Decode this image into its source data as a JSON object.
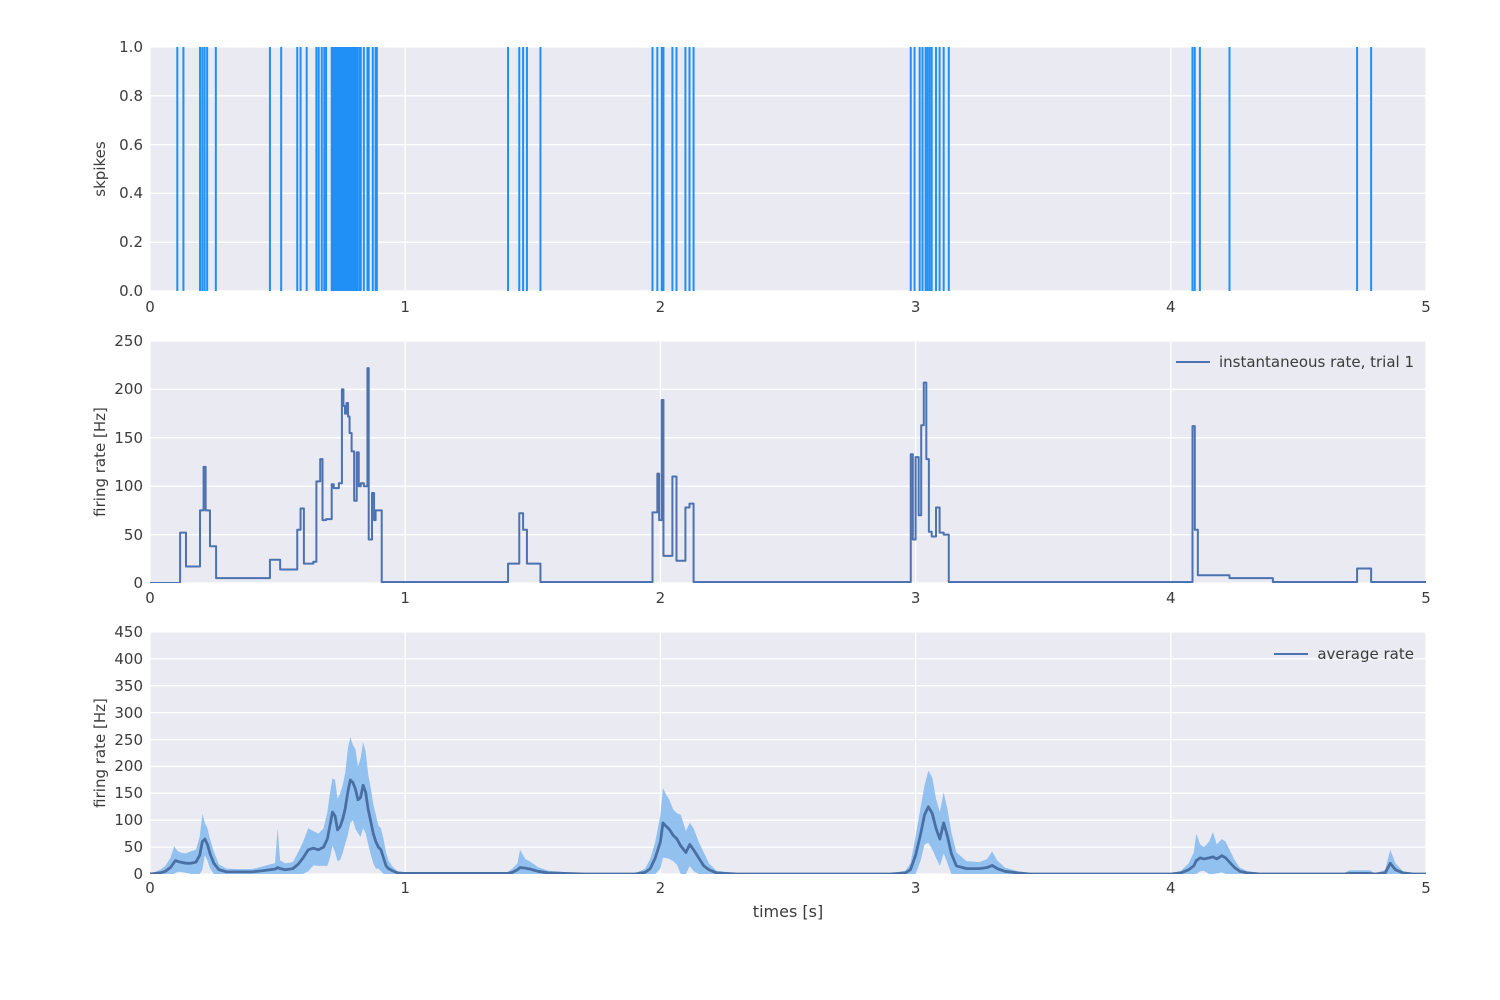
{
  "figure": {
    "background": "#ffffff",
    "axes_background": "#eaeaf2",
    "grid_color": "#ffffff",
    "text_color": "#3b3b3b"
  },
  "chart_data": [
    {
      "type": "event_raster",
      "ylabel": "skpikes",
      "xlim": [
        0,
        5
      ],
      "ylim": [
        0.0,
        1.0
      ],
      "xtick_values": [
        0,
        1,
        2,
        3,
        4,
        5
      ],
      "xtick_labels": [
        "0",
        "1",
        "2",
        "3",
        "4",
        "5"
      ],
      "ytick_values": [
        1.0,
        0.8,
        0.6,
        0.4,
        0.2,
        0.0
      ],
      "ytick_labels": [
        "1.0",
        "0.8",
        "0.6",
        "0.4",
        "0.2",
        "0.0"
      ],
      "grid": true,
      "line_color": "#2090f6",
      "spike_times": [
        0.107,
        0.131,
        0.196,
        0.205,
        0.214,
        0.224,
        0.258,
        0.47,
        0.514,
        0.577,
        0.59,
        0.614,
        0.652,
        0.661,
        0.673,
        0.683,
        0.69,
        0.712,
        0.7175,
        0.723,
        0.7285,
        0.734,
        0.7395,
        0.745,
        0.7505,
        0.756,
        0.7615,
        0.767,
        0.7725,
        0.778,
        0.7835,
        0.789,
        0.7945,
        0.8,
        0.8055,
        0.812,
        0.82,
        0.826,
        0.838,
        0.852,
        0.857,
        0.873,
        0.884,
        0.889,
        1.403,
        1.447,
        1.462,
        1.477,
        1.53,
        1.969,
        1.988,
        2.005,
        2.012,
        2.047,
        2.063,
        2.098,
        2.114,
        2.13,
        2.981,
        2.996,
        3.016,
        3.027,
        3.039,
        3.047,
        3.055,
        3.063,
        3.08,
        3.094,
        3.11,
        3.13,
        4.085,
        4.094,
        4.114,
        4.23,
        4.73,
        4.785
      ]
    },
    {
      "type": "step_line",
      "legend": "instantaneous rate, trial 1",
      "ylabel": "firing rate [Hz]",
      "xlim": [
        0,
        5
      ],
      "ylim": [
        0,
        250
      ],
      "xtick_values": [
        0,
        1,
        2,
        3,
        4,
        5
      ],
      "xtick_labels": [
        "0",
        "1",
        "2",
        "3",
        "4",
        "5"
      ],
      "ytick_values": [
        250,
        200,
        150,
        100,
        50,
        0
      ],
      "ytick_labels": [
        "250",
        "200",
        "150",
        "100",
        "50",
        "0"
      ],
      "grid": true,
      "line_color": "#4c72b0",
      "steps": [
        [
          0,
          0
        ],
        [
          0.118,
          52
        ],
        [
          0.141,
          17
        ],
        [
          0.196,
          75
        ],
        [
          0.21,
          120
        ],
        [
          0.218,
          75
        ],
        [
          0.235,
          38
        ],
        [
          0.259,
          5
        ],
        [
          0.47,
          24
        ],
        [
          0.51,
          14
        ],
        [
          0.577,
          55
        ],
        [
          0.59,
          77
        ],
        [
          0.603,
          20
        ],
        [
          0.64,
          22
        ],
        [
          0.652,
          105
        ],
        [
          0.667,
          128
        ],
        [
          0.676,
          65
        ],
        [
          0.69,
          66
        ],
        [
          0.712,
          102
        ],
        [
          0.72,
          98
        ],
        [
          0.74,
          103
        ],
        [
          0.752,
          200
        ],
        [
          0.758,
          183
        ],
        [
          0.764,
          175
        ],
        [
          0.77,
          186
        ],
        [
          0.776,
          172
        ],
        [
          0.782,
          155
        ],
        [
          0.79,
          136
        ],
        [
          0.8,
          85
        ],
        [
          0.81,
          135
        ],
        [
          0.818,
          100
        ],
        [
          0.826,
          103
        ],
        [
          0.838,
          100
        ],
        [
          0.852,
          222
        ],
        [
          0.857,
          45
        ],
        [
          0.87,
          93
        ],
        [
          0.878,
          65
        ],
        [
          0.884,
          75
        ],
        [
          0.908,
          1
        ],
        [
          1.403,
          20
        ],
        [
          1.447,
          72
        ],
        [
          1.462,
          55
        ],
        [
          1.477,
          20
        ],
        [
          1.53,
          1
        ],
        [
          1.969,
          73
        ],
        [
          1.988,
          113
        ],
        [
          1.995,
          65
        ],
        [
          2.005,
          189
        ],
        [
          2.012,
          28
        ],
        [
          2.047,
          110
        ],
        [
          2.063,
          23
        ],
        [
          2.098,
          78
        ],
        [
          2.114,
          82
        ],
        [
          2.13,
          1
        ],
        [
          2.981,
          133
        ],
        [
          2.989,
          45
        ],
        [
          3.0,
          130
        ],
        [
          3.012,
          70
        ],
        [
          3.022,
          163
        ],
        [
          3.032,
          207
        ],
        [
          3.042,
          128
        ],
        [
          3.052,
          53
        ],
        [
          3.063,
          48
        ],
        [
          3.08,
          78
        ],
        [
          3.094,
          52
        ],
        [
          3.11,
          50
        ],
        [
          3.13,
          1
        ],
        [
          4.085,
          162
        ],
        [
          4.094,
          55
        ],
        [
          4.106,
          8
        ],
        [
          4.23,
          5
        ],
        [
          4.4,
          1
        ],
        [
          4.73,
          15
        ],
        [
          4.785,
          1
        ],
        [
          5.0,
          1
        ]
      ]
    },
    {
      "type": "line_band",
      "legend": "average rate",
      "ylabel": "firing rate [Hz]",
      "xlabel": "times [s]",
      "xlim": [
        0,
        5
      ],
      "ylim": [
        0,
        450
      ],
      "xtick_values": [
        0,
        1,
        2,
        3,
        4,
        5
      ],
      "xtick_labels": [
        "0",
        "1",
        "2",
        "3",
        "4",
        "5"
      ],
      "ytick_values": [
        450,
        400,
        350,
        300,
        250,
        200,
        150,
        100,
        50,
        0
      ],
      "ytick_labels": [
        "450",
        "400",
        "350",
        "300",
        "250",
        "200",
        "150",
        "100",
        "50",
        "0"
      ],
      "grid": true,
      "line_color": "#4a6fa3",
      "band_color": "#8abcee",
      "points": [
        [
          0.0,
          0,
          0
        ],
        [
          0.04,
          2,
          8
        ],
        [
          0.06,
          5,
          15
        ],
        [
          0.08,
          12,
          30
        ],
        [
          0.095,
          22,
          52
        ],
        [
          0.1,
          25,
          48
        ],
        [
          0.11,
          23,
          42
        ],
        [
          0.12,
          22,
          40
        ],
        [
          0.14,
          20,
          38
        ],
        [
          0.16,
          20,
          42
        ],
        [
          0.18,
          22,
          45
        ],
        [
          0.195,
          35,
          70
        ],
        [
          0.205,
          60,
          112
        ],
        [
          0.215,
          65,
          95
        ],
        [
          0.225,
          55,
          85
        ],
        [
          0.235,
          38,
          65
        ],
        [
          0.25,
          20,
          42
        ],
        [
          0.27,
          8,
          18
        ],
        [
          0.3,
          4,
          10
        ],
        [
          0.35,
          4,
          9
        ],
        [
          0.4,
          4,
          9
        ],
        [
          0.44,
          6,
          14
        ],
        [
          0.47,
          8,
          18
        ],
        [
          0.49,
          9,
          20
        ],
        [
          0.5,
          12,
          85
        ],
        [
          0.51,
          10,
          25
        ],
        [
          0.53,
          8,
          20
        ],
        [
          0.56,
          10,
          22
        ],
        [
          0.58,
          18,
          40
        ],
        [
          0.6,
          30,
          60
        ],
        [
          0.62,
          45,
          85
        ],
        [
          0.64,
          48,
          80
        ],
        [
          0.66,
          45,
          75
        ],
        [
          0.68,
          50,
          85
        ],
        [
          0.695,
          65,
          115
        ],
        [
          0.705,
          90,
          150
        ],
        [
          0.715,
          115,
          178
        ],
        [
          0.725,
          108,
          175
        ],
        [
          0.735,
          82,
          140
        ],
        [
          0.745,
          88,
          150
        ],
        [
          0.755,
          102,
          165
        ],
        [
          0.765,
          122,
          188
        ],
        [
          0.775,
          152,
          232
        ],
        [
          0.785,
          175,
          255
        ],
        [
          0.795,
          170,
          240
        ],
        [
          0.805,
          158,
          232
        ],
        [
          0.815,
          138,
          200
        ],
        [
          0.825,
          142,
          215
        ],
        [
          0.835,
          165,
          245
        ],
        [
          0.845,
          152,
          228
        ],
        [
          0.855,
          120,
          185
        ],
        [
          0.865,
          98,
          160
        ],
        [
          0.875,
          75,
          130
        ],
        [
          0.885,
          60,
          110
        ],
        [
          0.895,
          50,
          90
        ],
        [
          0.905,
          45,
          85
        ],
        [
          0.915,
          30,
          65
        ],
        [
          0.925,
          15,
          40
        ],
        [
          0.935,
          10,
          25
        ],
        [
          0.95,
          6,
          14
        ],
        [
          0.97,
          2,
          5
        ],
        [
          1.0,
          1,
          3
        ],
        [
          1.2,
          1,
          3
        ],
        [
          1.4,
          1,
          3
        ],
        [
          1.42,
          3,
          10
        ],
        [
          1.44,
          8,
          20
        ],
        [
          1.45,
          12,
          45
        ],
        [
          1.47,
          11,
          28
        ],
        [
          1.49,
          9,
          23
        ],
        [
          1.52,
          5,
          13
        ],
        [
          1.56,
          2,
          6
        ],
        [
          1.7,
          0,
          1
        ],
        [
          1.9,
          0,
          1
        ],
        [
          1.94,
          3,
          10
        ],
        [
          1.96,
          10,
          28
        ],
        [
          1.98,
          30,
          60
        ],
        [
          2.0,
          60,
          110
        ],
        [
          2.01,
          95,
          160
        ],
        [
          2.02,
          90,
          150
        ],
        [
          2.035,
          83,
          138
        ],
        [
          2.05,
          72,
          120
        ],
        [
          2.065,
          65,
          113
        ],
        [
          2.08,
          52,
          110
        ],
        [
          2.1,
          40,
          80
        ],
        [
          2.115,
          55,
          95
        ],
        [
          2.13,
          45,
          85
        ],
        [
          2.15,
          30,
          60
        ],
        [
          2.17,
          15,
          40
        ],
        [
          2.19,
          8,
          20
        ],
        [
          2.22,
          2,
          6
        ],
        [
          2.3,
          0,
          1
        ],
        [
          2.9,
          0,
          1
        ],
        [
          2.96,
          2,
          6
        ],
        [
          2.98,
          8,
          20
        ],
        [
          3.0,
          35,
          70
        ],
        [
          3.02,
          75,
          125
        ],
        [
          3.035,
          110,
          165
        ],
        [
          3.05,
          125,
          192
        ],
        [
          3.065,
          113,
          180
        ],
        [
          3.08,
          85,
          140
        ],
        [
          3.095,
          65,
          115
        ],
        [
          3.11,
          95,
          152
        ],
        [
          3.125,
          70,
          120
        ],
        [
          3.14,
          38,
          78
        ],
        [
          3.16,
          15,
          40
        ],
        [
          3.2,
          10,
          24
        ],
        [
          3.25,
          10,
          22
        ],
        [
          3.28,
          12,
          28
        ],
        [
          3.3,
          16,
          42
        ],
        [
          3.32,
          10,
          25
        ],
        [
          3.35,
          5,
          12
        ],
        [
          3.4,
          2,
          5
        ],
        [
          3.45,
          0,
          1
        ],
        [
          3.6,
          0,
          1
        ],
        [
          4.0,
          0,
          1
        ],
        [
          4.04,
          2,
          6
        ],
        [
          4.07,
          8,
          20
        ],
        [
          4.09,
          15,
          40
        ],
        [
          4.1,
          25,
          75
        ],
        [
          4.115,
          30,
          55
        ],
        [
          4.13,
          28,
          50
        ],
        [
          4.15,
          30,
          60
        ],
        [
          4.165,
          32,
          78
        ],
        [
          4.18,
          28,
          55
        ],
        [
          4.2,
          34,
          65
        ],
        [
          4.215,
          30,
          60
        ],
        [
          4.23,
          22,
          45
        ],
        [
          4.25,
          12,
          26
        ],
        [
          4.27,
          5,
          12
        ],
        [
          4.3,
          2,
          5
        ],
        [
          4.35,
          0,
          2
        ],
        [
          4.68,
          0,
          2
        ],
        [
          4.7,
          1,
          7
        ],
        [
          4.78,
          1,
          7
        ],
        [
          4.8,
          0,
          1
        ],
        [
          4.84,
          2,
          8
        ],
        [
          4.86,
          20,
          45
        ],
        [
          4.88,
          8,
          20
        ],
        [
          4.91,
          2,
          5
        ],
        [
          4.95,
          0,
          1
        ],
        [
          5.0,
          0,
          0
        ]
      ]
    }
  ],
  "layout_note": ""
}
